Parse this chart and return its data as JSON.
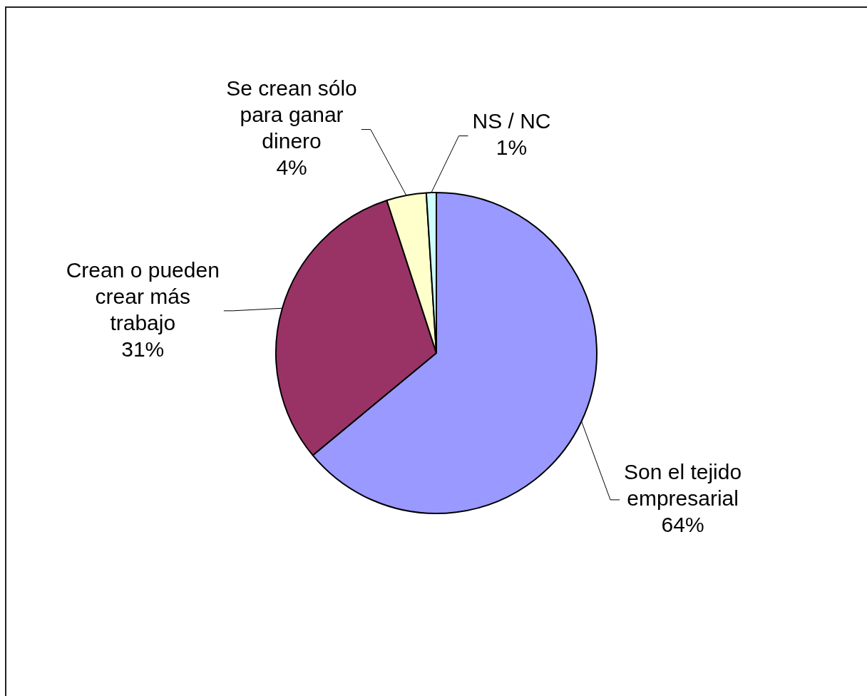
{
  "chart_data": {
    "type": "pie",
    "categories": [
      "Son el tejido empresarial",
      "Crean o pueden crear más trabajo",
      "Se crean sólo para ganar dinero",
      "NS / NC"
    ],
    "values": [
      64,
      31,
      4,
      1
    ],
    "colors": [
      "#9999ff",
      "#993366",
      "#ffffcc",
      "#ccffff"
    ],
    "value_labels": [
      "64%",
      "31%",
      "4%",
      "1%"
    ]
  }
}
